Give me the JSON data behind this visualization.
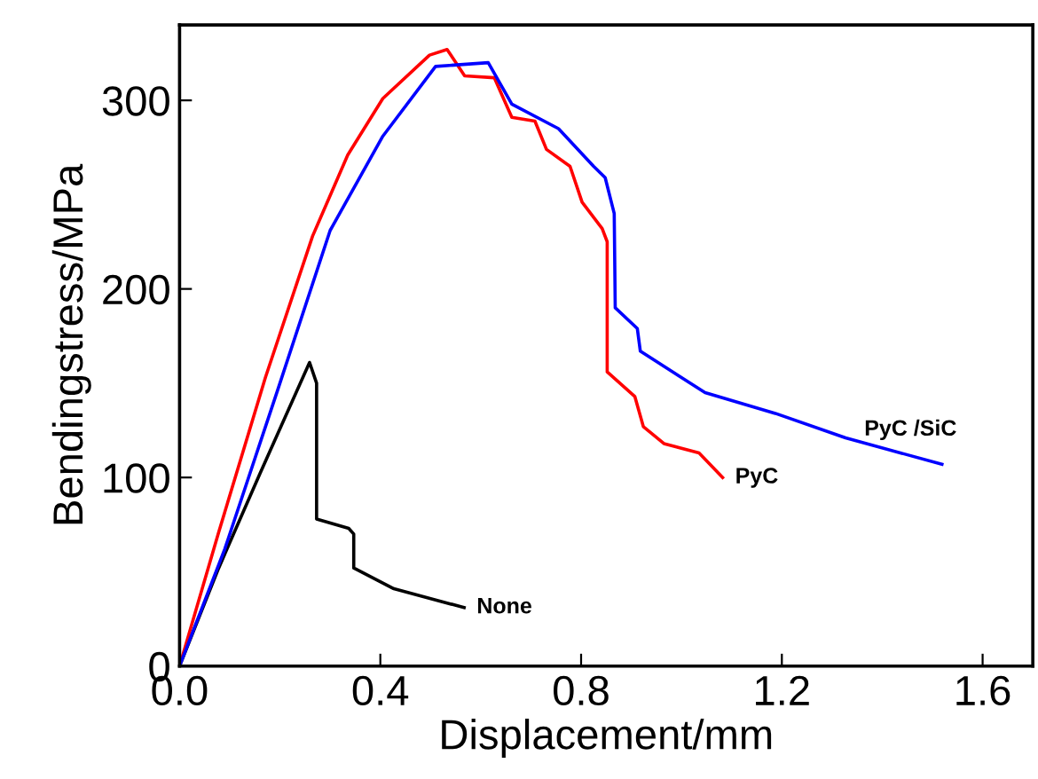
{
  "chart_data": {
    "type": "line",
    "xlabel": "Displacement/mm",
    "ylabel": "Bendingstress/MPa",
    "xlim": [
      0,
      1.7
    ],
    "ylim": [
      0,
      340
    ],
    "xticks": [
      {
        "value": 0,
        "label": "0.0"
      },
      0.4,
      0.8,
      1.2,
      1.6
    ],
    "yticks": [
      0,
      100,
      200,
      300
    ],
    "grid": false,
    "legend": false,
    "marker": "none",
    "line_style": "solid",
    "series": [
      {
        "name": "None",
        "color": "#000000",
        "x": [
          0,
          0.078,
          0.16,
          0.259,
          0.273,
          0.273,
          0.337,
          0.347,
          0.347,
          0.427,
          0.567
        ],
        "values": [
          0,
          52,
          102,
          161,
          150,
          78,
          73,
          70,
          52,
          41,
          31
        ]
      },
      {
        "name": "PyC",
        "color": "#ff0000",
        "x": [
          0,
          0.078,
          0.171,
          0.265,
          0.335,
          0.405,
          0.498,
          0.533,
          0.568,
          0.627,
          0.662,
          0.708,
          0.731,
          0.778,
          0.802,
          0.842,
          0.852,
          0.852,
          0.907,
          0.924,
          0.965,
          1.035,
          1.082
        ],
        "values": [
          0,
          71,
          153,
          228,
          271,
          301,
          324,
          327,
          313,
          312,
          291,
          289,
          274,
          265,
          246,
          232,
          225,
          156,
          143,
          127,
          118,
          113,
          100
        ]
      },
      {
        "name": "PyC /SiC",
        "color": "#0000ff",
        "x": [
          0,
          0.09,
          0.195,
          0.3,
          0.405,
          0.51,
          0.615,
          0.662,
          0.755,
          0.825,
          0.848,
          0.866,
          0.868,
          0.912,
          0.918,
          1.047,
          1.187,
          1.327,
          1.519
        ],
        "values": [
          0,
          62,
          146,
          231,
          281,
          318,
          320,
          298,
          285,
          265,
          259,
          240,
          190,
          179,
          167,
          145,
          134,
          121,
          107
        ]
      }
    ]
  }
}
